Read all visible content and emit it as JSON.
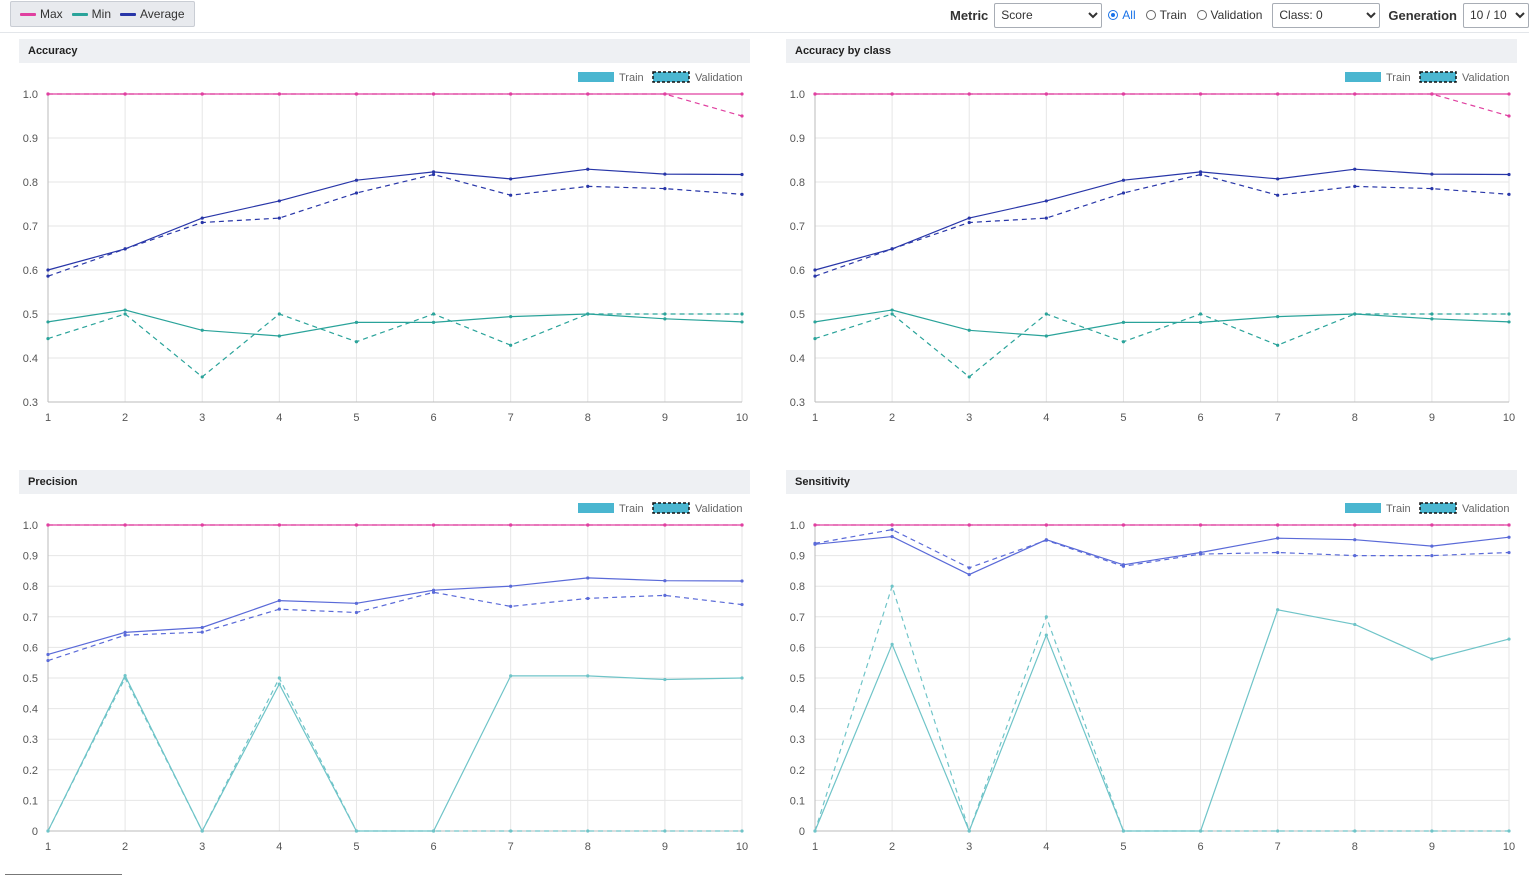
{
  "legend": {
    "items": [
      {
        "label": "Max",
        "color": "#e040a0"
      },
      {
        "label": "Min",
        "color": "#2aa39a"
      },
      {
        "label": "Average",
        "color": "#2836a8"
      }
    ]
  },
  "controls": {
    "metric_label": "Metric",
    "metric_value": "Score",
    "radios": [
      {
        "label": "All",
        "checked": true
      },
      {
        "label": "Train",
        "checked": false
      },
      {
        "label": "Validation",
        "checked": false
      }
    ],
    "class_value": "Class: 0",
    "generation_label": "Generation",
    "generation_value": "10 / 10"
  },
  "chart_legend": {
    "train": "Train",
    "validation": "Validation"
  },
  "colors": {
    "max": "#e040a0",
    "min": "#2aa39a",
    "avg": "#2836a8",
    "min_light": "#6fc4c8",
    "avg_light": "#5a6ad8",
    "swatch": "#4ab6d0"
  },
  "chart_data": [
    {
      "type": "line",
      "title": "Accuracy",
      "x": [
        1,
        2,
        3,
        4,
        5,
        6,
        7,
        8,
        9,
        10
      ],
      "ylim": [
        0.3,
        1.0
      ],
      "yticks": [
        "0.3",
        "0.4",
        "0.5",
        "0.6",
        "0.7",
        "0.8",
        "0.9",
        "1.0"
      ],
      "series": [
        {
          "stat": "max",
          "split": "train",
          "values": [
            1,
            1,
            1,
            1,
            1,
            1,
            1,
            1,
            1,
            1
          ]
        },
        {
          "stat": "max",
          "split": "validation",
          "values": [
            1,
            1,
            1,
            1,
            1,
            1,
            1,
            1,
            1,
            0.95
          ]
        },
        {
          "stat": "avg",
          "split": "train",
          "values": [
            0.6,
            0.648,
            0.718,
            0.757,
            0.804,
            0.823,
            0.807,
            0.829,
            0.818,
            0.817
          ]
        },
        {
          "stat": "avg",
          "split": "validation",
          "values": [
            0.586,
            0.648,
            0.708,
            0.718,
            0.775,
            0.817,
            0.77,
            0.79,
            0.785,
            0.772
          ]
        },
        {
          "stat": "min",
          "split": "train",
          "values": [
            0.482,
            0.509,
            0.463,
            0.45,
            0.481,
            0.481,
            0.494,
            0.5,
            0.489,
            0.482
          ]
        },
        {
          "stat": "min",
          "split": "validation",
          "values": [
            0.444,
            0.5,
            0.357,
            0.5,
            0.437,
            0.5,
            0.429,
            0.5,
            0.5,
            0.5
          ]
        }
      ]
    },
    {
      "type": "line",
      "title": "Accuracy by class",
      "x": [
        1,
        2,
        3,
        4,
        5,
        6,
        7,
        8,
        9,
        10
      ],
      "ylim": [
        0.3,
        1.0
      ],
      "yticks": [
        "0.3",
        "0.4",
        "0.5",
        "0.6",
        "0.7",
        "0.8",
        "0.9",
        "1.0"
      ],
      "series": [
        {
          "stat": "max",
          "split": "train",
          "values": [
            1,
            1,
            1,
            1,
            1,
            1,
            1,
            1,
            1,
            1
          ]
        },
        {
          "stat": "max",
          "split": "validation",
          "values": [
            1,
            1,
            1,
            1,
            1,
            1,
            1,
            1,
            1,
            0.95
          ]
        },
        {
          "stat": "avg",
          "split": "train",
          "values": [
            0.6,
            0.648,
            0.718,
            0.757,
            0.804,
            0.823,
            0.807,
            0.829,
            0.818,
            0.817
          ]
        },
        {
          "stat": "avg",
          "split": "validation",
          "values": [
            0.586,
            0.648,
            0.708,
            0.718,
            0.775,
            0.817,
            0.77,
            0.79,
            0.785,
            0.772
          ]
        },
        {
          "stat": "min",
          "split": "train",
          "values": [
            0.482,
            0.509,
            0.463,
            0.45,
            0.481,
            0.481,
            0.494,
            0.5,
            0.489,
            0.482
          ]
        },
        {
          "stat": "min",
          "split": "validation",
          "values": [
            0.444,
            0.5,
            0.357,
            0.5,
            0.437,
            0.5,
            0.429,
            0.5,
            0.5,
            0.5
          ]
        }
      ]
    },
    {
      "type": "line",
      "title": "Precision",
      "x": [
        1,
        2,
        3,
        4,
        5,
        6,
        7,
        8,
        9,
        10
      ],
      "ylim": [
        0,
        1.0
      ],
      "yticks": [
        "0",
        "0.1",
        "0.2",
        "0.3",
        "0.4",
        "0.5",
        "0.6",
        "0.7",
        "0.8",
        "0.9",
        "1.0"
      ],
      "series": [
        {
          "stat": "max",
          "split": "train",
          "values": [
            1,
            1,
            1,
            1,
            1,
            1,
            1,
            1,
            1,
            1
          ]
        },
        {
          "stat": "max",
          "split": "validation",
          "values": [
            1,
            1,
            1,
            1,
            1,
            1,
            1,
            1,
            1,
            1
          ]
        },
        {
          "stat": "avg",
          "split": "train",
          "values": [
            0.577,
            0.649,
            0.665,
            0.753,
            0.744,
            0.787,
            0.8,
            0.827,
            0.818,
            0.817
          ]
        },
        {
          "stat": "avg",
          "split": "validation",
          "values": [
            0.557,
            0.64,
            0.65,
            0.725,
            0.714,
            0.78,
            0.734,
            0.76,
            0.77,
            0.74
          ]
        },
        {
          "stat": "min",
          "split": "train",
          "values": [
            0,
            0.508,
            0,
            0.48,
            0,
            0,
            0.507,
            0.507,
            0.495,
            0.5
          ]
        },
        {
          "stat": "min",
          "split": "validation",
          "values": [
            0,
            0.5,
            0,
            0.5,
            0,
            0,
            0,
            0,
            0,
            0
          ]
        }
      ]
    },
    {
      "type": "line",
      "title": "Sensitivity",
      "x": [
        1,
        2,
        3,
        4,
        5,
        6,
        7,
        8,
        9,
        10
      ],
      "ylim": [
        0,
        1.0
      ],
      "yticks": [
        "0",
        "0.1",
        "0.2",
        "0.3",
        "0.4",
        "0.5",
        "0.6",
        "0.7",
        "0.8",
        "0.9",
        "1.0"
      ],
      "series": [
        {
          "stat": "max",
          "split": "train",
          "values": [
            1,
            1,
            1,
            1,
            1,
            1,
            1,
            1,
            1,
            1
          ]
        },
        {
          "stat": "max",
          "split": "validation",
          "values": [
            1,
            1,
            1,
            1,
            1,
            1,
            1,
            1,
            1,
            1
          ]
        },
        {
          "stat": "avg",
          "split": "train",
          "values": [
            0.937,
            0.962,
            0.838,
            0.952,
            0.87,
            0.91,
            0.957,
            0.952,
            0.931,
            0.96
          ]
        },
        {
          "stat": "avg",
          "split": "validation",
          "values": [
            0.94,
            0.985,
            0.86,
            0.95,
            0.865,
            0.905,
            0.91,
            0.9,
            0.9,
            0.91
          ]
        },
        {
          "stat": "min",
          "split": "train",
          "values": [
            0,
            0.61,
            0,
            0.64,
            0,
            0,
            0.723,
            0.675,
            0.562,
            0.627
          ]
        },
        {
          "stat": "min",
          "split": "validation",
          "values": [
            0,
            0.8,
            0,
            0.7,
            0,
            0,
            0,
            0,
            0,
            0
          ]
        }
      ]
    }
  ]
}
